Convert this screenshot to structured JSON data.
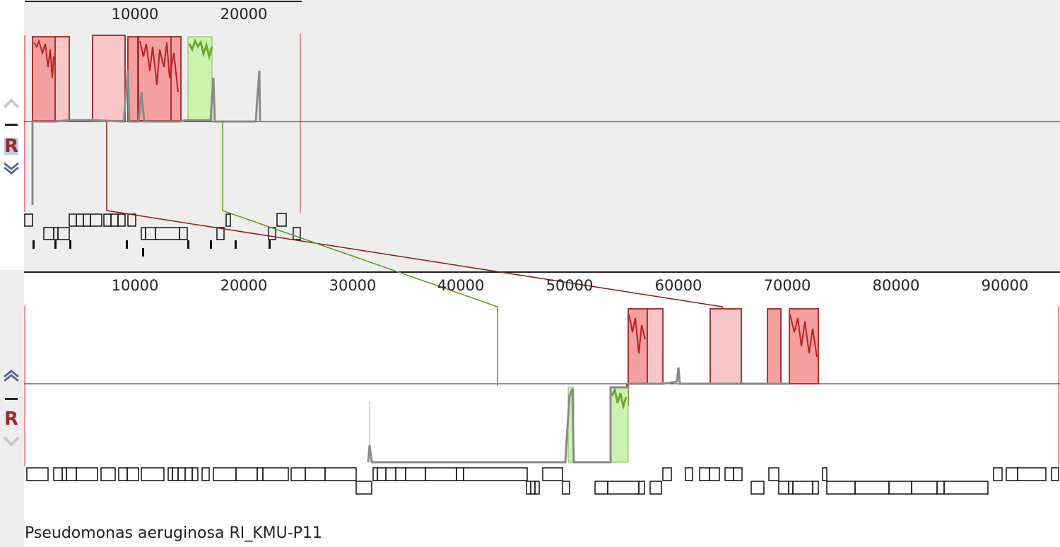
{
  "genome1": {
    "axis_ticks": [
      "10000",
      "20000"
    ],
    "controls": {
      "up": "chevron-up-icon",
      "minus": "minus-icon",
      "r_label": "R",
      "down": "chevron-down-icon"
    }
  },
  "genome2": {
    "axis_ticks": [
      "10000",
      "20000",
      "30000",
      "40000",
      "50000",
      "60000",
      "70000",
      "80000",
      "90000"
    ],
    "controls": {
      "up": "chevron-up-icon",
      "minus": "minus-icon",
      "r_label": "R",
      "down": "chevron-down-icon"
    },
    "name": "Pseudomonas aeruginosa RI_KMU-P11"
  },
  "colors": {
    "red_block": "#f08080",
    "green_block": "#a5e87a",
    "dark_red_line": "#8b1a1a",
    "green_line": "#5a9a1e",
    "profile_gray": "#808080",
    "panel_bg": "#eeeeee"
  }
}
